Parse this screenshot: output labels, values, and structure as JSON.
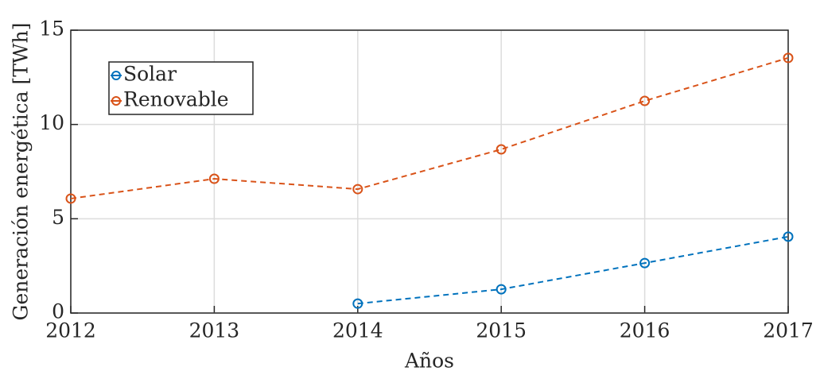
{
  "chart_data": {
    "type": "line",
    "x": [
      2012,
      2013,
      2014,
      2015,
      2016,
      2017
    ],
    "series": [
      {
        "name": "Solar",
        "color": "#0072bd",
        "values": [
          null,
          null,
          0.5,
          1.26,
          2.65,
          4.05
        ]
      },
      {
        "name": "Renovable",
        "color": "#d95319",
        "values": [
          6.07,
          7.12,
          6.57,
          8.68,
          11.25,
          13.53
        ]
      }
    ],
    "xlabel": "Años",
    "ylabel": "Generación energética [TWh]",
    "xlim": [
      2012,
      2017
    ],
    "xticks": [
      2012,
      2013,
      2014,
      2015,
      2016,
      2017
    ],
    "ylim": [
      0,
      15
    ],
    "yticks": [
      0,
      5,
      10,
      15
    ],
    "grid": true,
    "legend": "upper left"
  }
}
